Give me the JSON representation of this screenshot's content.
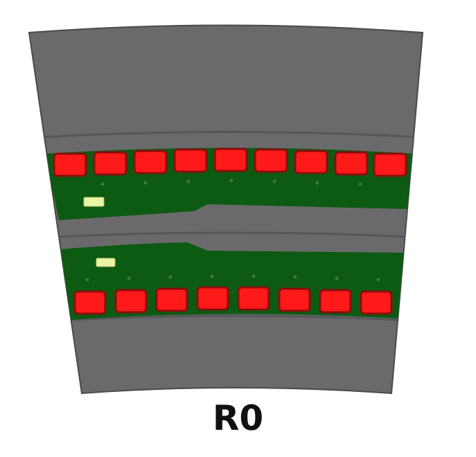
{
  "module": {
    "label": "R0"
  },
  "upper_hybrid": {
    "sensor_count": 9,
    "connector_count": 1
  },
  "lower_hybrid": {
    "sensor_count": 8,
    "connector_count": 1
  },
  "colors": {
    "frame": "#6a6a6d",
    "frame_outline": "#4a4a4e",
    "hybrid": "#0d5a12",
    "sensor": "#ff1a1a",
    "sensor_shadow": "#8a0d0d",
    "connector": "#e9f4a6",
    "label": "#111111"
  }
}
